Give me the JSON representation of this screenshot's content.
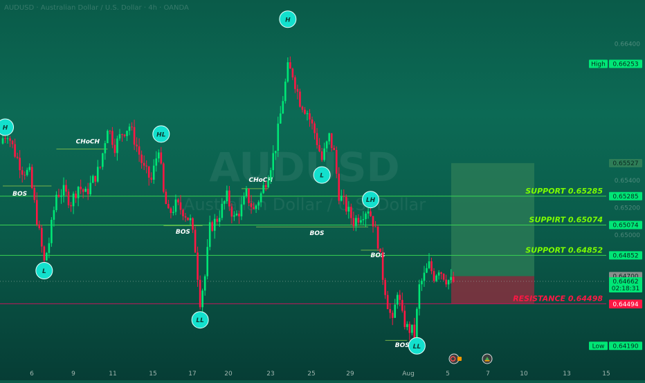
{
  "header": {
    "symbol_line": "AUDUSD · Australian Dollar / U.S. Dollar · 4h · OANDA"
  },
  "watermark": {
    "symbol": "AUDUSD",
    "description": "Australian Dollar / U.S. Dollar"
  },
  "colors": {
    "bull": "#00e676",
    "bear": "#ff1744",
    "support_line": "#39d353",
    "resistance_line": "#c2185b",
    "label_teal": "#13e0cd",
    "target_zone": "#2e7d57",
    "stop_zone": "#8e2e3f",
    "axis_text": "#c8d6d0"
  },
  "chart_data": {
    "type": "candlestick",
    "title": "",
    "ylim": [
      0.6408,
      0.6668
    ],
    "x_ticks": [
      "6",
      "9",
      "11",
      "15",
      "17",
      "20",
      "23",
      "25",
      "29",
      "Aug",
      "5",
      "7",
      "10",
      "13",
      "15"
    ],
    "y_ticks": [
      "0.66400",
      "0.66253",
      "0.65527",
      "0.65400",
      "0.65285",
      "0.65200",
      "0.65074",
      "0.65000",
      "0.64852",
      "0.64700",
      "0.64662",
      "0.64498",
      "0.64494",
      "0.64190"
    ],
    "price_tags": [
      {
        "label": "High",
        "value": "0.66253",
        "price": 0.66253,
        "color": "#00e676"
      },
      {
        "label": "",
        "value": "0.65527",
        "price": 0.65527,
        "color": "#2e7d57"
      },
      {
        "label": "",
        "value": "0.65285",
        "price": 0.65285,
        "color": "#00e676"
      },
      {
        "label": "",
        "value": "0.65074",
        "price": 0.65074,
        "color": "#00e676"
      },
      {
        "label": "",
        "value": "0.64852",
        "price": 0.64852,
        "color": "#00e676"
      },
      {
        "label": "",
        "value": "0.64700",
        "price": 0.647,
        "color": "#8a8f8d"
      },
      {
        "label": "",
        "value": "0.64662",
        "price": 0.64662,
        "color": "#00e676",
        "subtext": "02:18:31"
      },
      {
        "label": "",
        "value": "0.64498",
        "price": 0.64498,
        "color": "#ff1744"
      },
      {
        "label": "",
        "value": "0.64494",
        "price": 0.64494,
        "color": "#ff1744"
      },
      {
        "label": "Low",
        "value": "0.64190",
        "price": 0.6419,
        "color": "#00e676"
      }
    ],
    "levels": [
      {
        "name": "SUPPORT 0.65285",
        "price": 0.65285,
        "kind": "support"
      },
      {
        "name": "SUPPIRT 0.65074",
        "price": 0.65074,
        "kind": "support"
      },
      {
        "name": "SUPPORT 0.64852",
        "price": 0.64852,
        "kind": "support"
      },
      {
        "name": "RESISTANCE 0.64498",
        "price": 0.64498,
        "kind": "resistance"
      }
    ],
    "current_price": 0.64662,
    "trade_box": {
      "entry": 0.647,
      "target": 0.65527,
      "stop": 0.64498
    },
    "pivots": [
      {
        "label": "H",
        "bar": 1,
        "price": 0.6579
      },
      {
        "label": "L",
        "bar": 17,
        "price": 0.6474
      },
      {
        "label": "HL",
        "bar": 65,
        "price": 0.6574
      },
      {
        "label": "LL",
        "bar": 81,
        "price": 0.6438
      },
      {
        "label": "H",
        "bar": 117,
        "price": 0.6658
      },
      {
        "label": "L",
        "bar": 131,
        "price": 0.6544
      },
      {
        "label": "LH",
        "bar": 151,
        "price": 0.6526
      },
      {
        "label": "LL",
        "bar": 170,
        "price": 0.6419
      }
    ],
    "structure_labels": [
      {
        "text": "BOS",
        "bar_from": 0,
        "bar_to": 20,
        "price": 0.6536,
        "label_bar": 4,
        "label_price": 0.6529
      },
      {
        "text": "CHoCH",
        "bar_from": 22,
        "bar_to": 43,
        "price": 0.6563,
        "label_bar": 30,
        "label_price": 0.6567
      },
      {
        "text": "BOS",
        "bar_from": 66,
        "bar_to": 82,
        "price": 0.6507,
        "label_bar": 71,
        "label_price": 0.6501
      },
      {
        "text": "CHoCH",
        "bar_from": 98,
        "bar_to": 109,
        "price": 0.6534,
        "label_bar": 101,
        "label_price": 0.6539
      },
      {
        "text": "BOS",
        "bar_from": 104,
        "bar_to": 150,
        "price": 0.6506,
        "label_bar": 126,
        "label_price": 0.65
      },
      {
        "text": "BOS",
        "bar_from": 147,
        "bar_to": 155,
        "price": 0.6489,
        "label_bar": 151,
        "label_price": 0.6484
      },
      {
        "text": "BOS",
        "bar_from": 157,
        "bar_to": 166,
        "price": 0.6423,
        "label_bar": 161,
        "label_price": 0.6418
      }
    ],
    "closes_path": [
      [
        0,
        0.6571
      ],
      [
        2,
        0.6575
      ],
      [
        5,
        0.656
      ],
      [
        8,
        0.6548
      ],
      [
        11,
        0.6545
      ],
      [
        14,
        0.6512
      ],
      [
        17,
        0.648
      ],
      [
        19,
        0.6495
      ],
      [
        22,
        0.653
      ],
      [
        25,
        0.6532
      ],
      [
        28,
        0.6524
      ],
      [
        31,
        0.6536
      ],
      [
        34,
        0.653
      ],
      [
        37,
        0.654
      ],
      [
        40,
        0.655
      ],
      [
        43,
        0.658
      ],
      [
        46,
        0.6565
      ],
      [
        49,
        0.6575
      ],
      [
        52,
        0.658
      ],
      [
        55,
        0.6565
      ],
      [
        58,
        0.6548
      ],
      [
        61,
        0.654
      ],
      [
        64,
        0.6565
      ],
      [
        66,
        0.653
      ],
      [
        68,
        0.6515
      ],
      [
        71,
        0.6522
      ],
      [
        74,
        0.6518
      ],
      [
        77,
        0.651
      ],
      [
        79,
        0.649
      ],
      [
        81,
        0.6452
      ],
      [
        83,
        0.647
      ],
      [
        85,
        0.6505
      ],
      [
        88,
        0.6512
      ],
      [
        90,
        0.652
      ],
      [
        92,
        0.6528
      ],
      [
        95,
        0.6512
      ],
      [
        98,
        0.652
      ],
      [
        100,
        0.653
      ],
      [
        103,
        0.6518
      ],
      [
        106,
        0.653
      ],
      [
        109,
        0.6545
      ],
      [
        112,
        0.6565
      ],
      [
        115,
        0.66
      ],
      [
        117,
        0.6622
      ],
      [
        119,
        0.6618
      ],
      [
        122,
        0.6598
      ],
      [
        125,
        0.659
      ],
      [
        128,
        0.6575
      ],
      [
        131,
        0.6555
      ],
      [
        134,
        0.6572
      ],
      [
        136,
        0.656
      ],
      [
        138,
        0.653
      ],
      [
        141,
        0.652
      ],
      [
        144,
        0.651
      ],
      [
        147,
        0.6515
      ],
      [
        150,
        0.652
      ],
      [
        152,
        0.651
      ],
      [
        154,
        0.6495
      ],
      [
        156,
        0.647
      ],
      [
        158,
        0.645
      ],
      [
        160,
        0.6435
      ],
      [
        162,
        0.646
      ],
      [
        164,
        0.644
      ],
      [
        166,
        0.6432
      ],
      [
        168,
        0.643
      ],
      [
        169,
        0.6425
      ],
      [
        171,
        0.6462
      ],
      [
        173,
        0.647
      ],
      [
        175,
        0.6478
      ],
      [
        177,
        0.647
      ],
      [
        179,
        0.6476
      ],
      [
        182,
        0.6468
      ],
      [
        184,
        0.6466
      ]
    ]
  },
  "toolbar": {
    "replay_icon": "replay-icon",
    "alert_icon": "alert-icon"
  }
}
